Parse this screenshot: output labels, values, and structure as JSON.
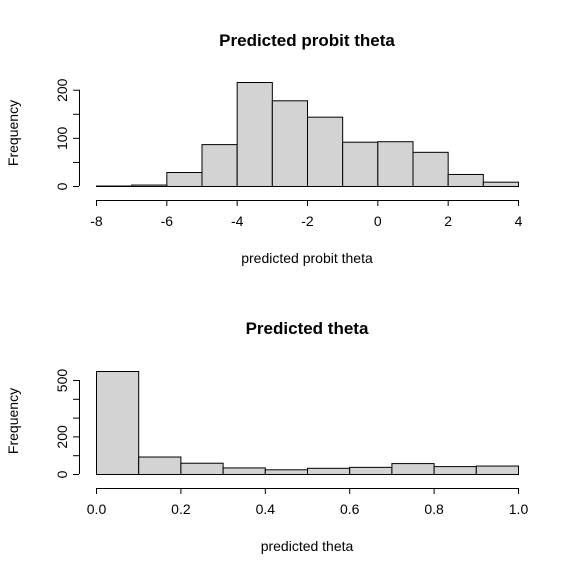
{
  "chart_data": [
    {
      "type": "histogram",
      "title": "Predicted probit theta",
      "xlabel": "predicted probit theta",
      "ylabel": "Frequency",
      "bin_edges": [
        -8,
        -7,
        -6,
        -5,
        -4,
        -3,
        -2,
        -1,
        0,
        1,
        2,
        3,
        4
      ],
      "values": [
        1,
        3,
        29,
        87,
        216,
        178,
        144,
        92,
        93,
        71,
        25,
        9
      ],
      "xlim": [
        -8,
        4
      ],
      "ylim": [
        0,
        216
      ],
      "xticks": [
        -8,
        -6,
        -4,
        -2,
        0,
        2,
        4
      ],
      "xtick_labels": [
        "-8",
        "-6",
        "-4",
        "-2",
        "0",
        "2",
        "4"
      ],
      "yticks": [
        0,
        50,
        100,
        150,
        200
      ],
      "ytick_labels": [
        "0",
        "",
        "100",
        "",
        "200"
      ],
      "bar_color": "#d3d3d3"
    },
    {
      "type": "histogram",
      "title": "Predicted theta",
      "xlabel": "predicted theta",
      "ylabel": "Frequency",
      "bin_edges": [
        0.0,
        0.1,
        0.2,
        0.3,
        0.4,
        0.5,
        0.6,
        0.7,
        0.8,
        0.9,
        1.0
      ],
      "values": [
        548,
        93,
        60,
        35,
        25,
        33,
        38,
        58,
        42,
        45
      ],
      "xlim": [
        0.0,
        1.0
      ],
      "ylim": [
        0,
        548
      ],
      "xticks": [
        0.0,
        0.2,
        0.4,
        0.6,
        0.8,
        1.0
      ],
      "xtick_labels": [
        "0.0",
        "0.2",
        "0.4",
        "0.6",
        "0.8",
        "1.0"
      ],
      "yticks": [
        0,
        100,
        200,
        300,
        400,
        500
      ],
      "ytick_labels": [
        "0",
        "",
        "200",
        "",
        "",
        "500"
      ],
      "bar_color": "#d3d3d3"
    }
  ]
}
